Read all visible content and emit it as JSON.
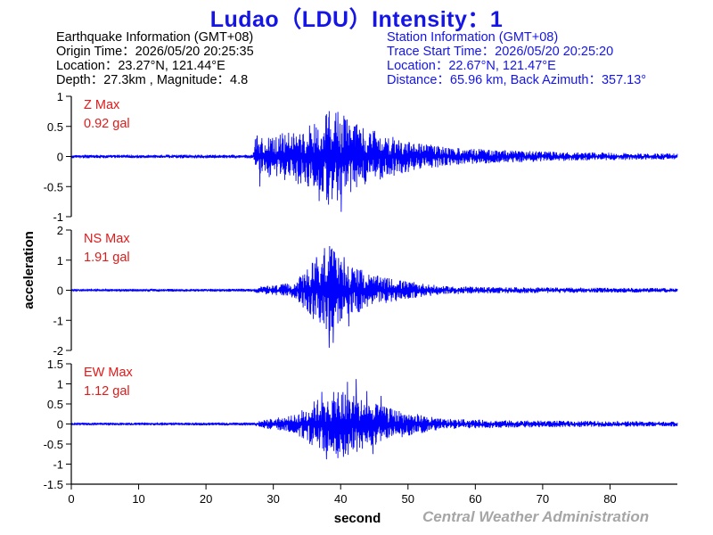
{
  "title": "Ludao（LDU）Intensity：1",
  "earthquake_info": {
    "heading": "Earthquake Information  (GMT+08)",
    "origin_time": "Origin Time：2026/05/20 20:25:35",
    "location": "Location：23.27°N, 121.44°E",
    "depth_magnitude": "Depth：27.3km , Magnitude：4.8"
  },
  "station_info": {
    "heading": "Station Information  (GMT+08)",
    "trace_start": "Trace Start Time：2026/05/20 20:25:20",
    "location": "Location：22.67°N, 121.47°E",
    "distance": "Distance：65.96 km, Back Azimuth：357.13°"
  },
  "credit": "Central Weather Administration",
  "colors": {
    "title": "#1515e6",
    "trace": "#0000ff",
    "max_label": "#e11a1a",
    "credit": "#a6a6a6",
    "axis": "#000000"
  },
  "chart_data": {
    "type": "line",
    "xlabel": "second",
    "ylabel": "acceleration",
    "xlim": [
      0,
      90
    ],
    "xticks": [
      0,
      10,
      20,
      30,
      40,
      50,
      60,
      70,
      80
    ],
    "panels": [
      {
        "name": "Z",
        "max_label": "Z Max",
        "max_value": "0.92 gal",
        "ylim": [
          -1,
          1
        ],
        "yticks": [
          "1",
          "0.5",
          "0",
          "-0.5",
          "-1"
        ],
        "envelope": [
          [
            0,
            0.03
          ],
          [
            27,
            0.03
          ],
          [
            27.3,
            0.32
          ],
          [
            32,
            0.4
          ],
          [
            36,
            0.55
          ],
          [
            39,
            0.82
          ],
          [
            42,
            0.55
          ],
          [
            46,
            0.4
          ],
          [
            50,
            0.26
          ],
          [
            56,
            0.15
          ],
          [
            65,
            0.1
          ],
          [
            75,
            0.07
          ],
          [
            90,
            0.05
          ]
        ],
        "peaks": [
          [
            40.1,
            -0.92
          ],
          [
            39.6,
            0.74
          ],
          [
            37.8,
            0.68
          ],
          [
            40.6,
            0.62
          ],
          [
            36.8,
            -0.74
          ],
          [
            38.2,
            -0.8
          ],
          [
            42.3,
            0.52
          ],
          [
            28,
            -0.5
          ],
          [
            27.6,
            0.35
          ]
        ]
      },
      {
        "name": "NS",
        "max_label": "NS Max",
        "max_value": "1.91 gal",
        "ylim": [
          -2,
          2
        ],
        "yticks": [
          "2",
          "1",
          "0",
          "-1",
          "-2"
        ],
        "envelope": [
          [
            0,
            0.04
          ],
          [
            27,
            0.05
          ],
          [
            28,
            0.12
          ],
          [
            33,
            0.25
          ],
          [
            35,
            0.7
          ],
          [
            37,
            1.3
          ],
          [
            38.5,
            1.5
          ],
          [
            40,
            1.1
          ],
          [
            42,
            0.8
          ],
          [
            45,
            0.5
          ],
          [
            50,
            0.3
          ],
          [
            55,
            0.14
          ],
          [
            65,
            0.1
          ],
          [
            90,
            0.07
          ]
        ],
        "peaks": [
          [
            38.3,
            -1.91
          ],
          [
            37.6,
            1.4
          ],
          [
            38.6,
            1.35
          ],
          [
            40.5,
            1.1
          ],
          [
            41.2,
            -1.2
          ],
          [
            38.9,
            -1.75
          ],
          [
            36.4,
            1.1
          ]
        ]
      },
      {
        "name": "EW",
        "max_label": "EW Max",
        "max_value": "1.12 gal",
        "ylim": [
          -1.5,
          1.5
        ],
        "yticks": [
          "1.5",
          "1",
          "0.5",
          "0",
          "-0.5",
          "-1",
          "-1.5"
        ],
        "envelope": [
          [
            0,
            0.03
          ],
          [
            27,
            0.04
          ],
          [
            29,
            0.12
          ],
          [
            33,
            0.22
          ],
          [
            35,
            0.45
          ],
          [
            37,
            0.7
          ],
          [
            39,
            0.8
          ],
          [
            41,
            0.85
          ],
          [
            43,
            0.7
          ],
          [
            46,
            0.45
          ],
          [
            50,
            0.3
          ],
          [
            55,
            0.13
          ],
          [
            65,
            0.09
          ],
          [
            90,
            0.06
          ]
        ],
        "peaks": [
          [
            42.3,
            1.12
          ],
          [
            41.0,
            1.05
          ],
          [
            37.9,
            -0.88
          ],
          [
            39.6,
            -0.85
          ],
          [
            43.9,
            0.82
          ],
          [
            40.4,
            -0.82
          ],
          [
            37.2,
            0.8
          ],
          [
            46,
            0.7
          ],
          [
            44.8,
            -0.75
          ]
        ]
      }
    ]
  }
}
